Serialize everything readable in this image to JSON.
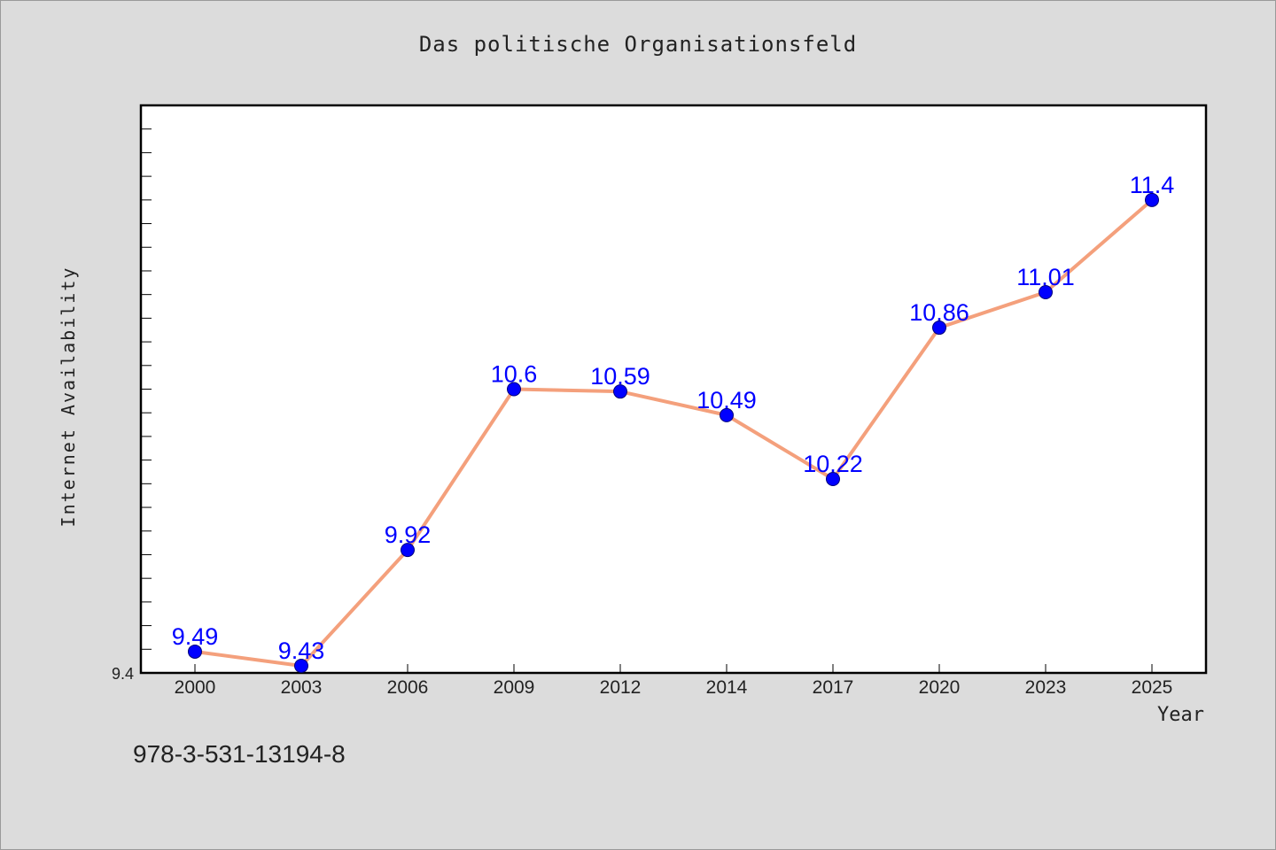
{
  "chart_data": {
    "type": "line",
    "title": "Das politische Organisationsfeld",
    "xlabel": "Year",
    "ylabel": "Internet Availability",
    "categories": [
      "2000",
      "2003",
      "2006",
      "2009",
      "2012",
      "2014",
      "2017",
      "2020",
      "2023",
      "2025"
    ],
    "series": [
      {
        "values": [
          9.49,
          9.43,
          9.92,
          10.6,
          10.59,
          10.49,
          10.22,
          10.86,
          11.01,
          11.4
        ],
        "line_color": "#f4a07c",
        "marker_color": "#0000ff",
        "label_color": "#0000ff"
      }
    ],
    "y_tick_labels": [
      "9.4"
    ],
    "ylim": [
      9.4,
      11.8
    ],
    "grid": false
  },
  "footer": {
    "text": "978-3-531-13194-8"
  }
}
